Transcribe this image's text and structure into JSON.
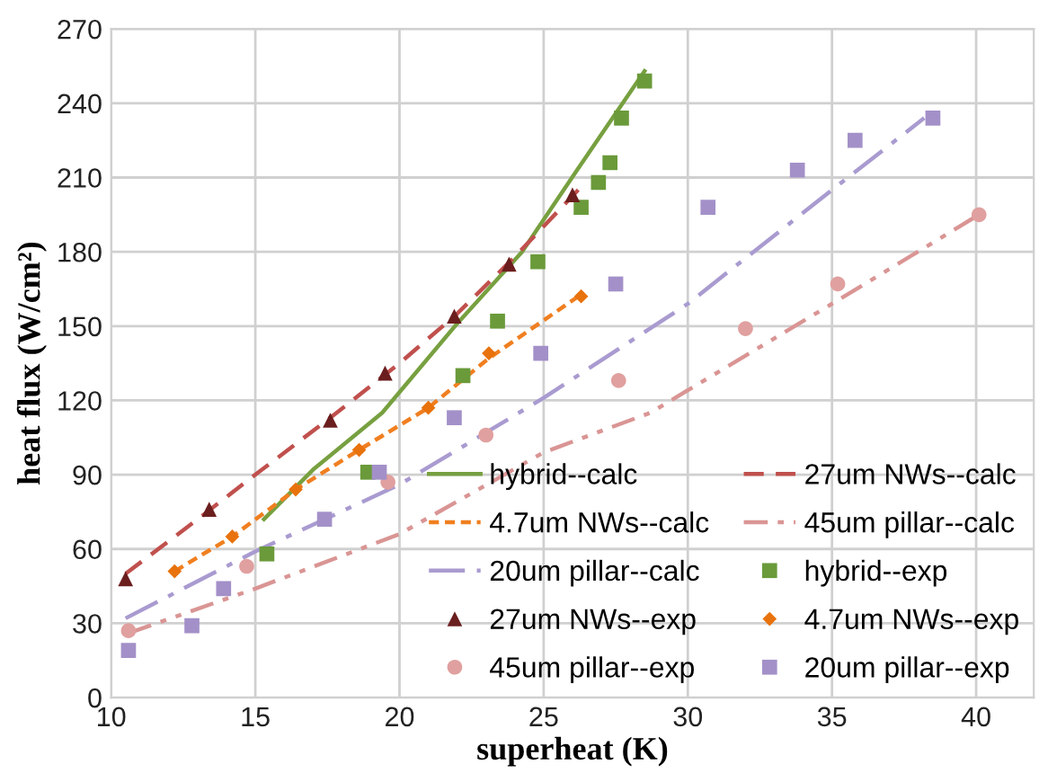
{
  "chart_data": {
    "type": "line",
    "xlabel": "superheat (K)",
    "ylabel": "heat flux (W/cm²)",
    "xlim": [
      10,
      42
    ],
    "xticks": [
      10,
      15,
      20,
      25,
      30,
      35,
      40
    ],
    "ylim": [
      0,
      270
    ],
    "yticks": [
      0,
      30,
      60,
      90,
      120,
      150,
      180,
      210,
      240,
      270
    ],
    "grid": true,
    "legend": "bottom right",
    "series": [
      {
        "name": "hybrid--calc",
        "color": "#77a040",
        "line_style": "solid",
        "marker": "none",
        "x": [
          15.3,
          17,
          19.4,
          22,
          24.25,
          26.1,
          28.5
        ],
        "values": [
          72,
          92,
          115,
          151,
          180,
          212,
          253
        ]
      },
      {
        "name": "27um NWs--calc",
        "color": "#c0504d",
        "line_style": "dashed",
        "marker": "none",
        "x": [
          10.5,
          13,
          15,
          17.6,
          20,
          22,
          24,
          26.2
        ],
        "values": [
          50,
          72,
          90,
          113,
          135,
          155,
          178,
          205
        ]
      },
      {
        "name": "4.7um NWs--calc",
        "color": "#f07f20",
        "line_style": "dotted",
        "marker": "none",
        "x": [
          12.2,
          14.2,
          16.4,
          18.6,
          21,
          23.1,
          26.2
        ],
        "values": [
          51,
          65,
          84,
          100,
          117,
          137,
          162
        ]
      },
      {
        "name": "45um pillar--calc",
        "color": "#d99594",
        "line_style": "dashdotdot",
        "marker": "none",
        "x": [
          10.6,
          15,
          20,
          25,
          28.7,
          35,
          40.1
        ],
        "values": [
          26,
          44,
          66,
          99,
          115,
          159,
          195
        ]
      },
      {
        "name": "20um pillar--calc",
        "color": "#a99bd0",
        "line_style": "dashdot",
        "marker": "none",
        "x": [
          10.5,
          15,
          20,
          25,
          30,
          35,
          38.2
        ],
        "values": [
          32,
          59,
          86,
          121,
          159,
          205,
          234
        ]
      },
      {
        "name": "hybrid--exp",
        "type": "scatter",
        "color": "#6a9a3a",
        "marker": "square",
        "x": [
          15.4,
          18.9,
          22.2,
          23.4,
          24.8,
          26.3,
          26.9,
          27.3,
          27.7,
          28.5
        ],
        "values": [
          58,
          91,
          130,
          152,
          176,
          198,
          208,
          216,
          234,
          249
        ]
      },
      {
        "name": "27um NWs--exp",
        "type": "scatter",
        "color": "#6b1e1e",
        "marker": "triangle",
        "x": [
          10.5,
          13.4,
          17.6,
          19.5,
          21.9,
          23.8,
          26.0
        ],
        "values": [
          48,
          76,
          112,
          131,
          154,
          175,
          203
        ]
      },
      {
        "name": "4.7um NWs--exp",
        "type": "scatter",
        "color": "#e8720c",
        "marker": "diamond",
        "x": [
          12.2,
          14.2,
          16.4,
          18.6,
          21.0,
          23.1,
          26.3
        ],
        "values": [
          51,
          65,
          84,
          100,
          117,
          139,
          162
        ]
      },
      {
        "name": "45um pillar--exp",
        "type": "scatter",
        "color": "#e0a09f",
        "marker": "circle",
        "x": [
          10.6,
          14.7,
          19.6,
          23.0,
          27.6,
          32.0,
          35.2,
          40.1
        ],
        "values": [
          27,
          53,
          87,
          106,
          128,
          149,
          167,
          195
        ]
      },
      {
        "name": "20um pillar--exp",
        "type": "scatter",
        "color": "#a390c8",
        "marker": "square",
        "x": [
          10.6,
          12.8,
          13.9,
          17.4,
          19.3,
          21.9,
          24.9,
          27.5,
          30.7,
          33.8,
          35.8,
          38.5
        ],
        "values": [
          19,
          29,
          44,
          72,
          91,
          113,
          139,
          167,
          198,
          213,
          225,
          234
        ]
      }
    ]
  }
}
